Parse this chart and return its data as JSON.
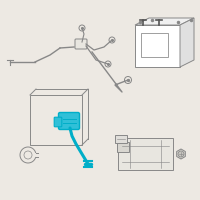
{
  "bg_color": "#ede9e3",
  "line_color": "#888888",
  "line_color_dark": "#555555",
  "highlight_color": "#00aec8",
  "highlight_fill": "#30c0d8",
  "fig_size": [
    2.0,
    2.0
  ],
  "dpi": 100
}
